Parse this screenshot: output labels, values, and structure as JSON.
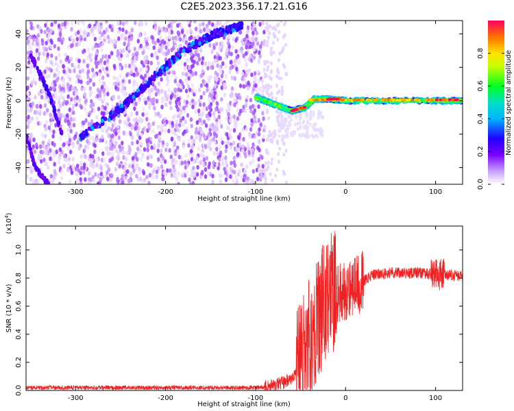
{
  "title": "C2E5.2023.356.17.21.G16",
  "chart_data": [
    {
      "type": "heatmap",
      "xlabel": "Height of straight line (km)",
      "ylabel": "Frequency (Hz)",
      "xlim": [
        -355,
        130
      ],
      "ylim": [
        -50,
        48
      ],
      "xticks": [
        -300,
        -200,
        -100,
        0,
        100
      ],
      "yticks": [
        -40,
        -20,
        0,
        20,
        40
      ],
      "colorbar": {
        "label": "Normalized spectral amplitude",
        "ticks": [
          "0.0",
          "0.2",
          "0.4",
          "0.6",
          "0.8"
        ],
        "range": [
          0,
          1
        ],
        "colormap": [
          "#ffffff",
          "#9b30ff",
          "#2000ff",
          "#00d7ff",
          "#00ff20",
          "#ffff00",
          "#ff7800",
          "#ff0060"
        ]
      },
      "features": {
        "rising_track": {
          "x": [
            -295,
            -250,
            -215,
            -180,
            -145,
            -115
          ],
          "y": [
            -22,
            -5,
            13,
            30,
            40,
            45
          ]
        },
        "falling_track": {
          "x": [
            -350,
            -330,
            -315
          ],
          "y": [
            28,
            5,
            -20
          ]
        },
        "lower_track": {
          "x": [
            -355,
            -345,
            -330
          ],
          "y": [
            -20,
            -40,
            -50
          ]
        },
        "strong_line": {
          "x": [
            -100,
            -80,
            -60,
            -45,
            -35,
            -20,
            0,
            50,
            100,
            130
          ],
          "y": [
            2,
            -2,
            -6,
            -4,
            1,
            1,
            0,
            0,
            0,
            0
          ]
        }
      }
    },
    {
      "type": "line",
      "xlabel": "Height of straight line (km)",
      "ylabel": "SNR (10 * v/v)",
      "ylabel_multiplier": "(x10",
      "ylabel_exponent": "4",
      "ylabel_close": ")",
      "xlim": [
        -355,
        130
      ],
      "ylim": [
        0,
        1.17
      ],
      "xticks": [
        -300,
        -200,
        -100,
        0,
        100
      ],
      "yticks": [
        "0.0",
        "0.2",
        "0.4",
        "0.6",
        "0.8",
        "1.0"
      ],
      "series": [
        {
          "color": "#ee2222",
          "x": [
            -355,
            -300,
            -200,
            -100,
            -80,
            -60,
            -50,
            -45,
            -40,
            -35,
            -30,
            -25,
            -20,
            -15,
            -10,
            -5,
            0,
            10,
            20,
            30,
            40,
            50,
            60,
            70,
            80,
            90,
            100,
            110,
            120,
            130
          ],
          "y": [
            0.02,
            0.02,
            0.02,
            0.02,
            0.03,
            0.08,
            0.18,
            0.3,
            0.35,
            0.45,
            0.55,
            0.6,
            0.65,
            0.7,
            0.7,
            0.7,
            0.72,
            0.74,
            0.78,
            0.82,
            0.83,
            0.84,
            0.84,
            0.83,
            0.84,
            0.83,
            0.83,
            0.82,
            0.82,
            0.81
          ]
        }
      ]
    }
  ]
}
